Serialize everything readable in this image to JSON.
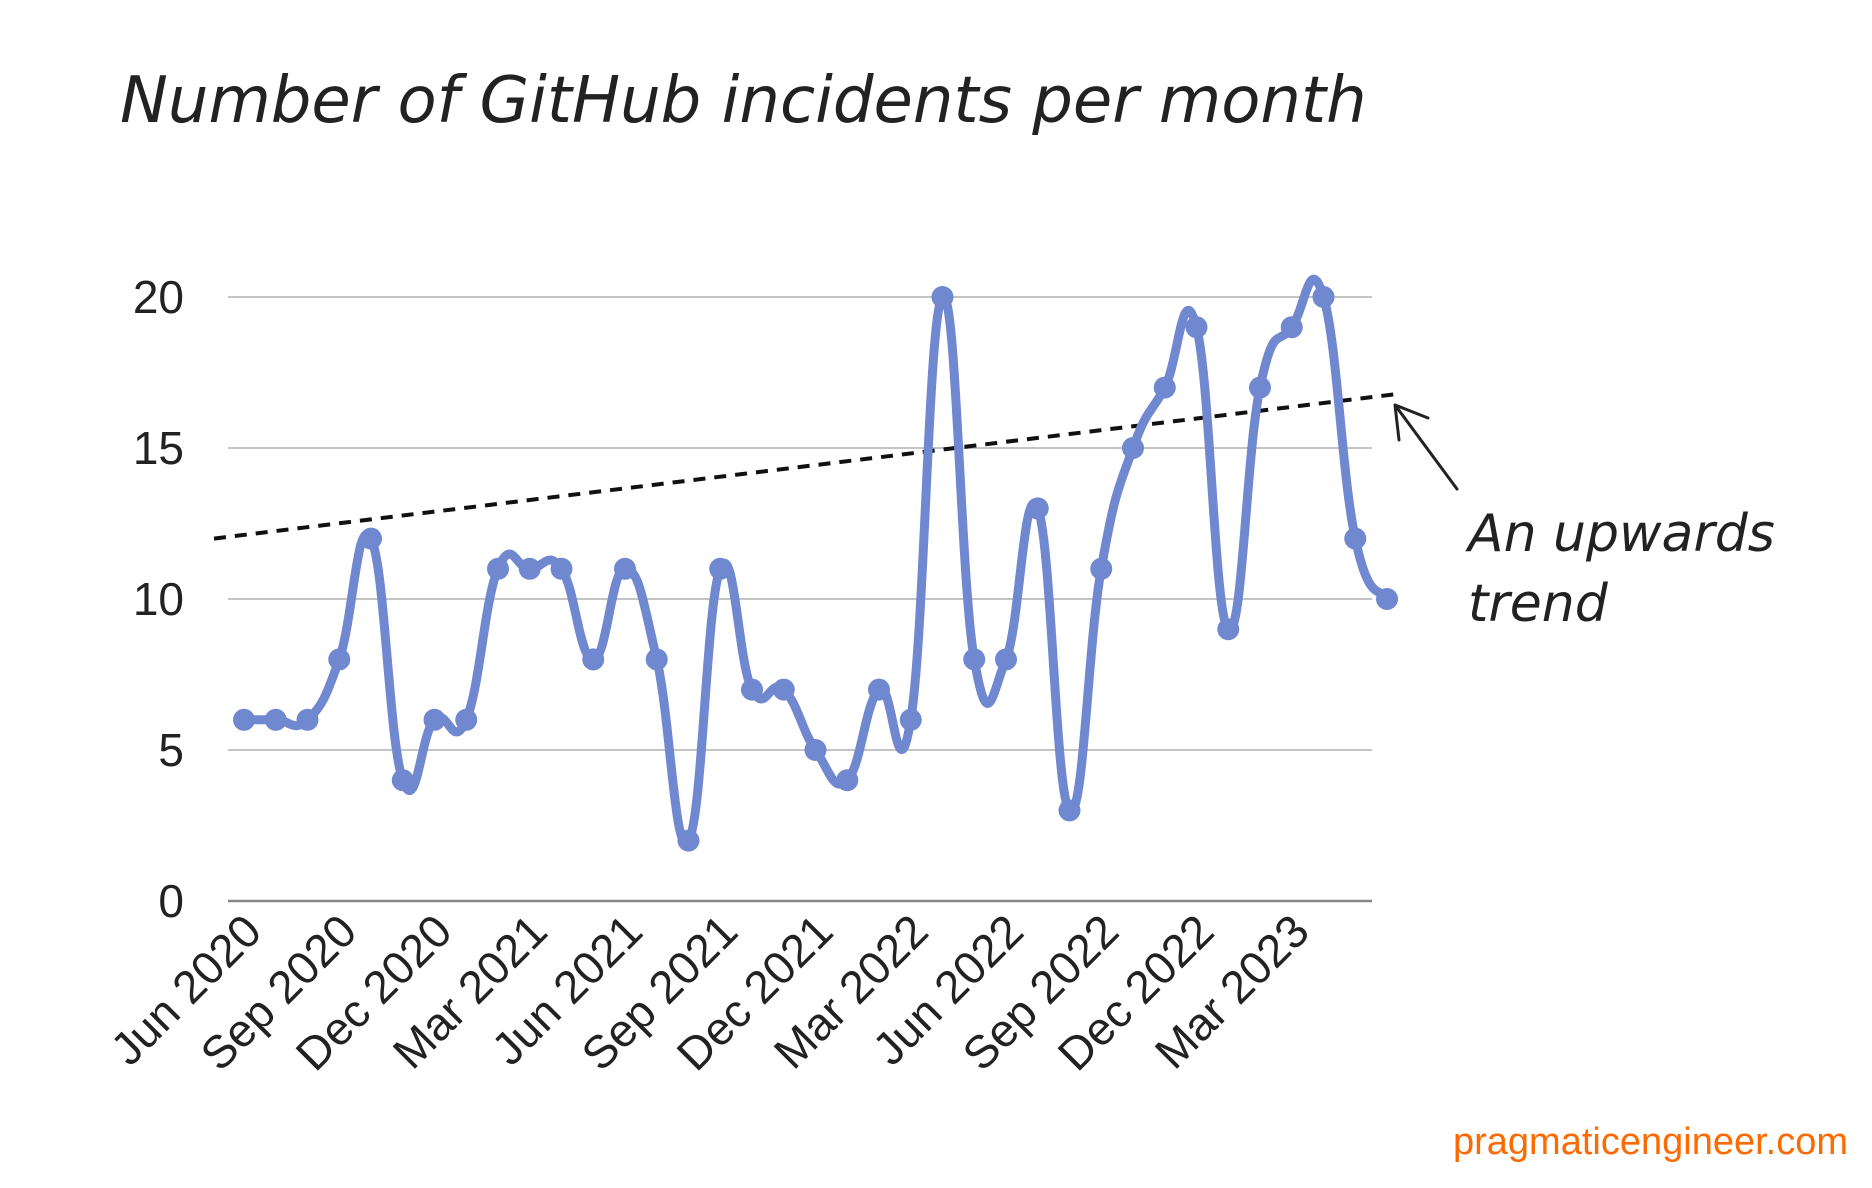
{
  "title": "Number of GitHub incidents per month",
  "source": "pragmaticengineer.com",
  "colors": {
    "line": "#7088d0",
    "trend": "#111111",
    "grid": "#c4c4c4",
    "axis": "#888888",
    "source": "#ff6a00"
  },
  "chart_data": {
    "type": "line",
    "title": "Number of GitHub incidents per month",
    "xlabel": "",
    "ylabel": "",
    "ylim": [
      0,
      20
    ],
    "yticks": [
      0,
      5,
      10,
      15,
      20
    ],
    "grid": true,
    "x": [
      "Jun 2020",
      "Jul 2020",
      "Aug 2020",
      "Sep 2020",
      "Oct 2020",
      "Nov 2020",
      "Dec 2020",
      "Jan 2021",
      "Feb 2021",
      "Mar 2021",
      "Apr 2021",
      "May 2021",
      "Jun 2021",
      "Jul 2021",
      "Aug 2021",
      "Sep 2021",
      "Oct 2021",
      "Nov 2021",
      "Dec 2021",
      "Jan 2022",
      "Feb 2022",
      "Mar 2022",
      "Apr 2022",
      "May 2022",
      "Jun 2022",
      "Jul 2022",
      "Aug 2022",
      "Sep 2022",
      "Oct 2022",
      "Nov 2022",
      "Dec 2022",
      "Jan 2023",
      "Feb 2023",
      "Mar 2023",
      "Apr 2023",
      "May 2023",
      "Jun 2023"
    ],
    "x_tick_labels": [
      "Jun 2020",
      "Sep 2020",
      "Dec 2020",
      "Mar 2021",
      "Jun 2021",
      "Sep 2021",
      "Dec 2021",
      "Mar 2022",
      "Jun 2022",
      "Sep 2022",
      "Dec 2022",
      "Mar 2023"
    ],
    "series": [
      {
        "values": [
          6,
          6,
          6,
          8,
          12,
          4,
          6,
          6,
          11,
          11,
          11,
          8,
          11,
          8,
          2,
          11,
          7,
          7,
          5,
          4,
          7,
          6,
          20,
          8,
          8,
          13,
          3,
          11,
          15,
          17,
          19,
          9,
          17,
          19,
          20,
          12,
          10
        ]
      }
    ],
    "trend_line": {
      "start": 12.1,
      "end": 16.8,
      "style": "dashed"
    },
    "annotations": [
      {
        "text_lines": [
          "An upwards",
          "trend"
        ],
        "points_to": "trend line end"
      }
    ]
  }
}
